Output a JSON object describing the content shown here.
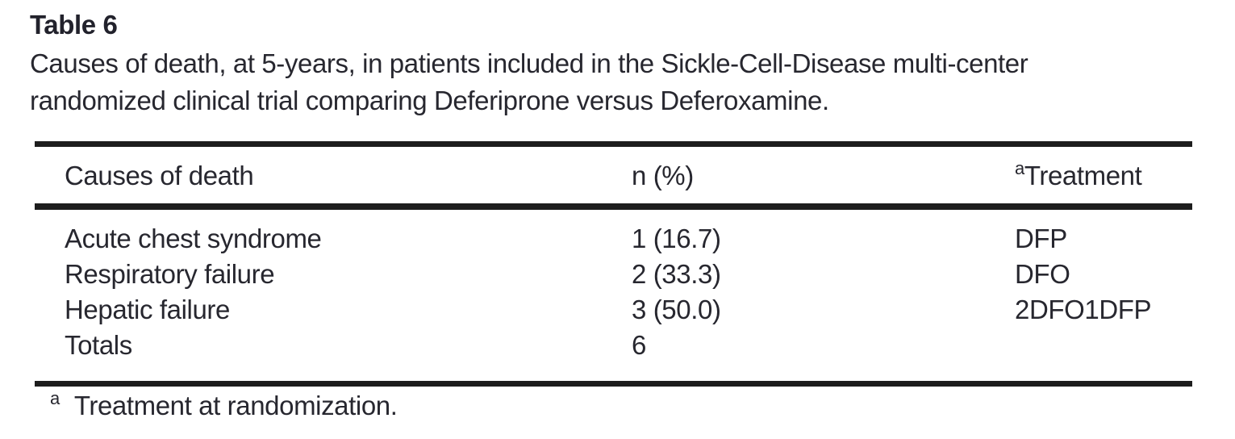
{
  "table": {
    "label": "Table 6",
    "caption_line1": "Causes of death, at 5-years, in patients included in the Sickle-Cell-Disease multi-center",
    "caption_line2": "randomized clinical trial comparing Deferiprone versus Deferoxamine.",
    "columns": {
      "cause": "Causes of death",
      "n_pct": "n (%)",
      "treatment": "Treatment",
      "treatment_superscript": "a"
    },
    "rows": [
      {
        "cause": "Acute chest syndrome",
        "n_pct": "1 (16.7)",
        "treatment": "DFP"
      },
      {
        "cause": "Respiratory failure",
        "n_pct": "2 (33.3)",
        "treatment": "DFO"
      },
      {
        "cause": "Hepatic failure",
        "n_pct": "3 (50.0)",
        "treatment": "2DFO1DFP"
      },
      {
        "cause": "Totals",
        "n_pct": "6",
        "treatment": ""
      }
    ],
    "footnote": {
      "marker": "a",
      "text": "Treatment at randomization."
    }
  },
  "colors": {
    "background": "#ffffff",
    "text": "#27272f",
    "rule": "#1d1d1d"
  }
}
